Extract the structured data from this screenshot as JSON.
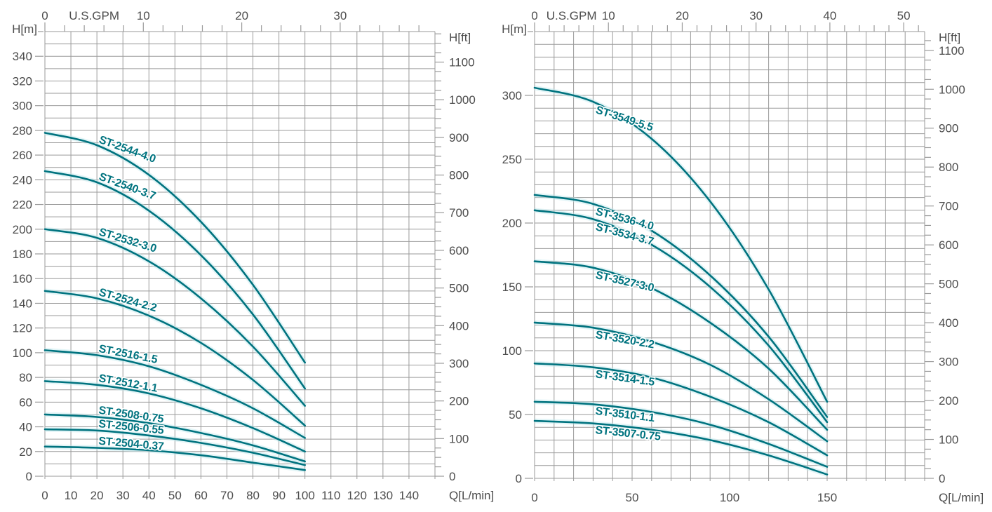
{
  "page": {
    "background": "#ffffff"
  },
  "colors": {
    "curve": "#00737f",
    "curve_halo": "#c2e8ee",
    "grid": "#9a9a9a",
    "axis_text": "#4d4d4d",
    "background": "#ffffff"
  },
  "chart_data": [
    {
      "id": "st25",
      "type": "line",
      "units": {
        "bottom": "Q[L/min]",
        "top": "U.S.GPM",
        "left": "H[m]",
        "right": "H[ft]"
      },
      "label_side": "above",
      "axes": {
        "q_grid_max": 150,
        "q_grid_step": 10,
        "m_grid_max": 360,
        "m_grid_step": 10,
        "m_labels": [
          0,
          20,
          40,
          60,
          80,
          100,
          120,
          140,
          160,
          180,
          200,
          220,
          240,
          260,
          280,
          300,
          320,
          340
        ],
        "q_labels": [
          0,
          10,
          20,
          30,
          40,
          50,
          60,
          70,
          80,
          90,
          100,
          110,
          120,
          130,
          140
        ],
        "gpm_labels": [
          0,
          10,
          20,
          30
        ],
        "gpm_tick_step": 2,
        "ft_labels": [
          0,
          100,
          200,
          300,
          400,
          500,
          600,
          700,
          800,
          900,
          1000,
          1100
        ],
        "ft_tick_step": 25
      },
      "series": [
        {
          "name": "ST-2544-4.0",
          "q": [
            0,
            20,
            40,
            60,
            80,
            100
          ],
          "h_m": [
            278,
            268,
            244,
            206,
            155,
            92
          ],
          "label_q": 20.5,
          "label_angle": 20
        },
        {
          "name": "ST-2540-3.7",
          "q": [
            0,
            20,
            40,
            60,
            80,
            100
          ],
          "h_m": [
            247,
            238,
            215,
            179,
            131,
            71
          ],
          "label_q": 20.5,
          "label_angle": 20
        },
        {
          "name": "ST-2532-3.0",
          "q": [
            0,
            20,
            40,
            60,
            80,
            100
          ],
          "h_m": [
            200,
            193,
            174,
            144,
            105,
            57
          ],
          "label_q": 20.5,
          "label_angle": 17
        },
        {
          "name": "ST-2524-2.2",
          "q": [
            0,
            20,
            40,
            60,
            80,
            100
          ],
          "h_m": [
            150,
            144,
            130,
            108,
            78,
            41
          ],
          "label_q": 20.5,
          "label_angle": 16
        },
        {
          "name": "ST-2516-1.5",
          "q": [
            0,
            20,
            40,
            60,
            80,
            100
          ],
          "h_m": [
            102,
            98,
            89,
            74,
            55,
            31
          ],
          "label_q": 20.5,
          "label_angle": 11
        },
        {
          "name": "ST-2512-1.1",
          "q": [
            0,
            20,
            40,
            60,
            80,
            100
          ],
          "h_m": [
            77,
            74,
            67,
            55,
            39,
            20
          ],
          "label_q": 20.5,
          "label_angle": 10
        },
        {
          "name": "ST-2508-0.75",
          "q": [
            0,
            20,
            40,
            60,
            80,
            100
          ],
          "h_m": [
            50,
            48,
            43,
            35,
            25,
            12
          ],
          "label_q": 20.5,
          "label_angle": 8
        },
        {
          "name": "ST-2506-0.55",
          "q": [
            0,
            20,
            40,
            60,
            80,
            100
          ],
          "h_m": [
            38,
            37,
            33,
            27,
            19,
            9
          ],
          "label_q": 20.5,
          "label_angle": 6
        },
        {
          "name": "ST-2504-0.37",
          "q": [
            0,
            20,
            40,
            60,
            80,
            100
          ],
          "h_m": [
            24,
            23,
            21,
            17,
            11,
            5
          ],
          "label_q": 20.5,
          "label_angle": 5
        }
      ]
    },
    {
      "id": "st35",
      "type": "line",
      "units": {
        "bottom": "Q[L/min]",
        "top": "U.S.GPM",
        "left": "H[m]",
        "right": "H[ft]"
      },
      "label_side": "below",
      "axes": {
        "q_grid_max": 200,
        "q_grid_step": 10,
        "m_grid_max": 350,
        "m_grid_step": 10,
        "m_labels": [
          0,
          50,
          100,
          150,
          200,
          250,
          300
        ],
        "q_labels": [
          0,
          50,
          100,
          150
        ],
        "gpm_labels": [
          0,
          10,
          20,
          30,
          40,
          50
        ],
        "gpm_tick_step": 2,
        "ft_labels": [
          0,
          100,
          200,
          300,
          400,
          500,
          600,
          700,
          800,
          900,
          1000,
          1100
        ],
        "ft_tick_step": 25
      },
      "series": [
        {
          "name": "ST-3549-5.5",
          "q": [
            0,
            30,
            60,
            90,
            120,
            150
          ],
          "h_m": [
            306,
            295,
            266,
            217,
            148,
            60
          ],
          "label_q": 31,
          "label_angle": 18
        },
        {
          "name": "ST-3536-4.0",
          "q": [
            0,
            30,
            60,
            90,
            120,
            150
          ],
          "h_m": [
            222,
            215,
            194,
            159,
            111,
            48
          ],
          "label_q": 31,
          "label_angle": 15
        },
        {
          "name": "ST-3534-3.7",
          "q": [
            0,
            30,
            60,
            90,
            120,
            150
          ],
          "h_m": [
            210,
            203,
            183,
            150,
            104,
            44
          ],
          "label_q": 31,
          "label_angle": 15
        },
        {
          "name": "ST-3527-3.0",
          "q": [
            0,
            30,
            60,
            90,
            120,
            150
          ],
          "h_m": [
            170,
            165,
            149,
            122,
            86,
            38
          ],
          "label_q": 31,
          "label_angle": 13
        },
        {
          "name": "ST-3520-2.2",
          "q": [
            0,
            30,
            60,
            90,
            120,
            150
          ],
          "h_m": [
            122,
            118,
            107,
            89,
            62,
            29
          ],
          "label_q": 31,
          "label_angle": 10
        },
        {
          "name": "ST-3514-1.5",
          "q": [
            0,
            30,
            60,
            90,
            120,
            150
          ],
          "h_m": [
            90,
            87,
            79,
            64,
            44,
            18
          ],
          "label_q": 31,
          "label_angle": 8
        },
        {
          "name": "ST-3510-1.1",
          "q": [
            0,
            30,
            60,
            90,
            120,
            150
          ],
          "h_m": [
            60,
            58,
            52,
            42,
            27,
            9
          ],
          "label_q": 31,
          "label_angle": 7
        },
        {
          "name": "ST-3507-0.75",
          "q": [
            0,
            30,
            60,
            90,
            120,
            150
          ],
          "h_m": [
            45,
            43,
            38,
            30,
            18,
            3
          ],
          "label_q": 31,
          "label_angle": 6
        }
      ]
    }
  ]
}
